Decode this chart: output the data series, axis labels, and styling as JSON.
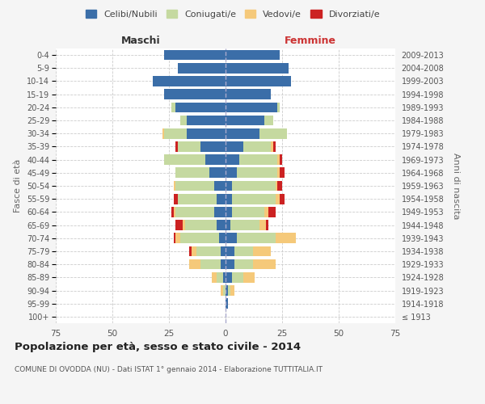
{
  "age_groups": [
    "100+",
    "95-99",
    "90-94",
    "85-89",
    "80-84",
    "75-79",
    "70-74",
    "65-69",
    "60-64",
    "55-59",
    "50-54",
    "45-49",
    "40-44",
    "35-39",
    "30-34",
    "25-29",
    "20-24",
    "15-19",
    "10-14",
    "5-9",
    "0-4"
  ],
  "birth_years": [
    "≤ 1913",
    "1914-1918",
    "1919-1923",
    "1924-1928",
    "1929-1933",
    "1934-1938",
    "1939-1943",
    "1944-1948",
    "1949-1953",
    "1954-1958",
    "1959-1963",
    "1964-1968",
    "1969-1973",
    "1974-1978",
    "1979-1983",
    "1984-1988",
    "1989-1993",
    "1994-1998",
    "1999-2003",
    "2004-2008",
    "2009-2013"
  ],
  "male": {
    "celibi": [
      0,
      0,
      0,
      1,
      2,
      2,
      3,
      4,
      5,
      4,
      5,
      7,
      9,
      11,
      17,
      17,
      22,
      27,
      32,
      21,
      27
    ],
    "coniugati": [
      0,
      0,
      1,
      3,
      9,
      11,
      17,
      14,
      17,
      17,
      17,
      15,
      18,
      10,
      10,
      3,
      2,
      0,
      0,
      0,
      0
    ],
    "vedovi": [
      0,
      0,
      1,
      2,
      5,
      2,
      2,
      1,
      1,
      0,
      1,
      0,
      0,
      0,
      1,
      0,
      0,
      0,
      0,
      0,
      0
    ],
    "divorziati": [
      0,
      0,
      0,
      0,
      0,
      1,
      1,
      3,
      1,
      2,
      0,
      0,
      0,
      1,
      0,
      0,
      0,
      0,
      0,
      0,
      0
    ]
  },
  "female": {
    "nubili": [
      0,
      1,
      1,
      3,
      4,
      4,
      5,
      2,
      3,
      3,
      3,
      5,
      6,
      8,
      15,
      17,
      23,
      20,
      29,
      28,
      24
    ],
    "coniugate": [
      0,
      0,
      1,
      5,
      8,
      8,
      17,
      13,
      14,
      19,
      19,
      18,
      17,
      12,
      12,
      4,
      1,
      0,
      0,
      0,
      0
    ],
    "vedove": [
      0,
      0,
      2,
      5,
      10,
      8,
      9,
      3,
      2,
      2,
      1,
      1,
      1,
      1,
      0,
      0,
      0,
      0,
      0,
      0,
      0
    ],
    "divorziate": [
      0,
      0,
      0,
      0,
      0,
      0,
      0,
      1,
      3,
      2,
      2,
      2,
      1,
      1,
      0,
      0,
      0,
      0,
      0,
      0,
      0
    ]
  },
  "colors": {
    "celibi": "#3b6ea8",
    "coniugati": "#c5d9a0",
    "vedovi": "#f5c97a",
    "divorziati": "#cc2222"
  },
  "legend_labels": [
    "Celibi/Nubili",
    "Coniugati/e",
    "Vedovi/e",
    "Divorziati/e"
  ],
  "xlabel_left": "Maschi",
  "xlabel_right": "Femmine",
  "ylabel_left": "Fasce di età",
  "ylabel_right": "Anni di nascita",
  "title": "Popolazione per età, sesso e stato civile - 2014",
  "subtitle": "COMUNE DI OVODDA (NU) - Dati ISTAT 1° gennaio 2014 - Elaborazione TUTTITALIA.IT",
  "xlim": 75,
  "bg_color": "#f5f5f5",
  "plot_bg": "#ffffff",
  "grid_color": "#cccccc"
}
